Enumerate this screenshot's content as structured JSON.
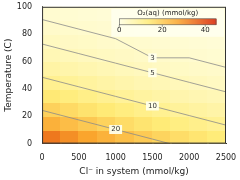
{
  "chart_data": {
    "type": "heatmap",
    "x_label": "Cl⁻ in system (mmol/kg)",
    "y_label": "Temperature (C)",
    "xlim": [
      0,
      2500
    ],
    "xticks": [
      0,
      500,
      1000,
      1500,
      2000,
      2500
    ],
    "ylim": [
      0,
      100
    ],
    "yticks": [
      0,
      20,
      40,
      60,
      80,
      100
    ],
    "grid": false,
    "heatmap": {
      "x": [
        125,
        375,
        625,
        875,
        1125,
        1375,
        1625,
        1875,
        2125,
        2375
      ],
      "y": [
        5,
        15,
        25,
        35,
        45,
        55,
        65,
        75,
        85,
        95
      ],
      "values": [
        [
          33.0,
          29.9,
          27.0,
          24.5,
          22.1,
          20.0,
          18.1,
          16.4,
          14.8,
          13.4
        ],
        [
          24.7,
          22.4,
          20.3,
          18.3,
          16.6,
          15.0,
          13.6,
          12.3,
          11.1,
          10.1
        ],
        [
          18.6,
          16.9,
          15.3,
          13.8,
          12.5,
          11.3,
          10.2,
          9.3,
          8.4,
          7.6
        ],
        [
          14.0,
          12.7,
          11.5,
          10.4,
          9.4,
          8.5,
          7.7,
          6.9,
          6.3,
          5.7
        ],
        [
          10.5,
          9.5,
          8.6,
          7.8,
          7.0,
          6.3,
          5.7,
          5.2,
          4.7,
          4.3
        ],
        [
          7.9,
          7.1,
          6.5,
          5.9,
          5.3,
          4.8,
          4.3,
          3.9,
          3.5,
          3.2
        ],
        [
          5.9,
          5.3,
          4.8,
          4.4,
          4.0,
          3.6,
          3.2,
          2.9,
          2.6,
          2.4
        ],
        [
          4.5,
          4.0,
          3.7,
          3.3,
          3.0,
          2.7,
          2.5,
          2.2,
          2.0,
          1.8
        ],
        [
          3.3,
          3.0,
          2.7,
          2.5,
          2.2,
          2.0,
          1.8,
          1.7,
          1.5,
          1.4
        ],
        [
          2.5,
          2.2,
          2.0,
          1.8,
          1.7,
          1.5,
          1.4,
          1.2,
          1.1,
          1.0
        ]
      ]
    },
    "colorbar": {
      "label": "O₂(aq) (mmol/kg)",
      "range": [
        0,
        45
      ],
      "ticks": [
        0,
        20,
        40
      ]
    },
    "contours": [
      {
        "level": 3,
        "x": [
          0,
          500,
          1000,
          1500,
          2000,
          2500
        ],
        "y": [
          90.7,
          83.7,
          76.7,
          62.7,
          62.7,
          55.7
        ]
      },
      {
        "level": 5,
        "x": [
          0,
          500,
          1000,
          1500,
          2000,
          2500
        ],
        "y": [
          72.8,
          65.8,
          58.8,
          51.8,
          44.8,
          37.8
        ]
      },
      {
        "level": 10,
        "x": [
          0,
          500,
          1000,
          1500,
          2000,
          2500
        ],
        "y": [
          48.5,
          41.5,
          34.5,
          27.5,
          20.5,
          13.5
        ]
      },
      {
        "level": 20,
        "x": [
          0,
          500,
          1000,
          1500,
          1733
        ],
        "y": [
          24.3,
          17.3,
          10.3,
          3.3,
          0
        ]
      }
    ]
  }
}
